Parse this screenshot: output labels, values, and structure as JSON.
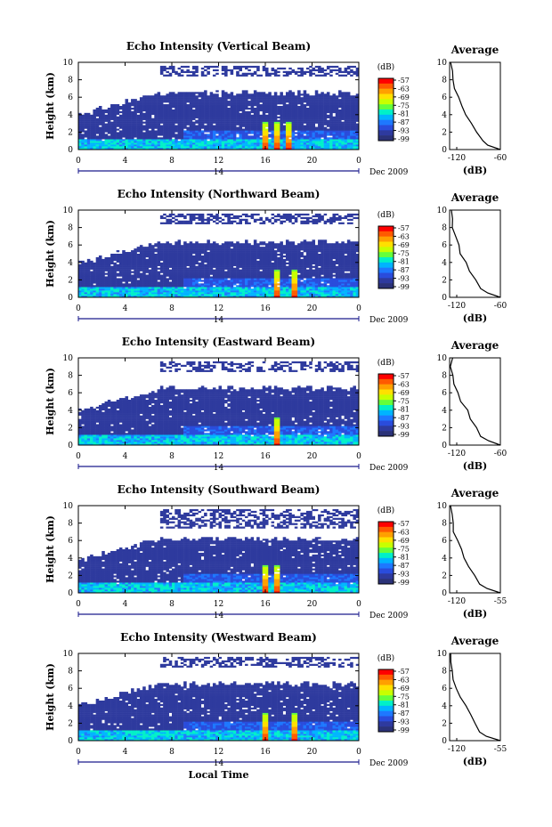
{
  "figure": {
    "xlabel_bottom": "Local Time",
    "date_label": "Dec 2009",
    "day_label": "14",
    "y_axis_label": "Height (km)",
    "colorbar_unit": "(dB)",
    "colorbar_ticks": [
      "-57",
      "-63",
      "-69",
      "-75",
      "-81",
      "-87",
      "-93",
      "-99"
    ],
    "colorbar_colors": [
      "#ff0000",
      "#ff5a00",
      "#ffa000",
      "#ffe000",
      "#c8ff00",
      "#64ff3c",
      "#00f0c8",
      "#00b4ff",
      "#1e78ff",
      "#2a4cdc",
      "#2e3a9e",
      "#2b3278"
    ],
    "average_title": "Average",
    "average_xlabel": "(dB)",
    "x_ticks": [
      "0",
      "4",
      "8",
      "12",
      "16",
      "20",
      "0"
    ],
    "y_ticks": [
      "0",
      "2",
      "4",
      "6",
      "8",
      "10"
    ]
  },
  "chart_data": [
    {
      "type": "heatmap",
      "title": "Echo Intensity (Vertical Beam)",
      "xlabel": "",
      "ylabel": "Height (km)",
      "xlim": [
        0,
        24
      ],
      "ylim": [
        0,
        10
      ],
      "cloud_top_km": 6.5,
      "upper_layer_km": [
        8.5,
        9.5
      ],
      "spikes_hour": [
        16,
        17,
        18
      ],
      "average": {
        "title": "Average",
        "xlabel": "(dB)",
        "xlim": [
          -120,
          -60
        ],
        "xticks": [
          "-120",
          "-60"
        ],
        "height_km": [
          0,
          0.5,
          1,
          2,
          3,
          4,
          5,
          6,
          7,
          8,
          9,
          10
        ],
        "db": [
          -60,
          -75,
          -82,
          -88,
          -94,
          -100,
          -106,
          -110,
          -114,
          -117,
          -118,
          -118
        ]
      }
    },
    {
      "type": "heatmap",
      "title": "Echo Intensity (Northward Beam)",
      "xlabel": "",
      "ylabel": "Height (km)",
      "xlim": [
        0,
        24
      ],
      "ylim": [
        0,
        10
      ],
      "cloud_top_km": 6.3,
      "upper_layer_km": [
        8.5,
        9.5
      ],
      "spikes_hour": [
        17,
        18.5
      ],
      "average": {
        "title": "Average",
        "xlabel": "(dB)",
        "xlim": [
          -120,
          -60
        ],
        "xticks": [
          "-120",
          "-60"
        ],
        "height_km": [
          0,
          0.5,
          1,
          2,
          3,
          4,
          5,
          6,
          7,
          8,
          9,
          10
        ],
        "db": [
          -60,
          -75,
          -83,
          -89,
          -95,
          -101,
          -106,
          -110,
          -114,
          -117,
          -118,
          -118
        ]
      }
    },
    {
      "type": "heatmap",
      "title": "Echo Intensity (Eastward Beam)",
      "xlabel": "",
      "ylabel": "Height (km)",
      "xlim": [
        0,
        24
      ],
      "ylim": [
        0,
        10
      ],
      "cloud_top_km": 6.5,
      "upper_layer_km": [
        8.5,
        9.5
      ],
      "spikes_hour": [
        17
      ],
      "average": {
        "title": "Average",
        "xlabel": "(dB)",
        "xlim": [
          -120,
          -60
        ],
        "xticks": [
          "-120",
          "-60"
        ],
        "height_km": [
          0,
          0.5,
          1,
          2,
          3,
          4,
          5,
          6,
          7,
          8,
          9,
          10
        ],
        "db": [
          -60,
          -74,
          -82,
          -88,
          -94,
          -100,
          -106,
          -110,
          -114,
          -117,
          -118,
          -118
        ]
      }
    },
    {
      "type": "heatmap",
      "title": "Echo Intensity (Southward Beam)",
      "xlabel": "",
      "ylabel": "Height (km)",
      "xlim": [
        0,
        24
      ],
      "ylim": [
        0,
        10
      ],
      "cloud_top_km": 6.2,
      "upper_layer_km": [
        7.5,
        9.5
      ],
      "spikes_hour": [
        16,
        17
      ],
      "average": {
        "title": "Average",
        "xlabel": "(dB)",
        "xlim": [
          -120,
          -55
        ],
        "xticks": [
          "-120",
          "-55"
        ],
        "height_km": [
          0,
          0.5,
          1,
          2,
          3,
          4,
          5,
          6,
          7,
          8,
          9,
          10
        ],
        "db": [
          -55,
          -72,
          -81,
          -88,
          -94,
          -100,
          -106,
          -110,
          -114,
          -117,
          -118,
          -118
        ]
      }
    },
    {
      "type": "heatmap",
      "title": "Echo Intensity (Westward Beam)",
      "xlabel": "Local Time",
      "ylabel": "Height (km)",
      "xlim": [
        0,
        24
      ],
      "ylim": [
        0,
        10
      ],
      "cloud_top_km": 6.5,
      "upper_layer_km": [
        8.5,
        9.5
      ],
      "spikes_hour": [
        16,
        18.5
      ],
      "average": {
        "title": "Average",
        "xlabel": "(dB)",
        "xlim": [
          -120,
          -55
        ],
        "xticks": [
          "-120",
          "-55"
        ],
        "height_km": [
          0,
          0.5,
          1,
          2,
          3,
          4,
          5,
          6,
          7,
          8,
          9,
          10
        ],
        "db": [
          -55,
          -73,
          -82,
          -88,
          -94,
          -100,
          -106,
          -110,
          -114,
          -117,
          -118,
          -118
        ]
      }
    }
  ]
}
